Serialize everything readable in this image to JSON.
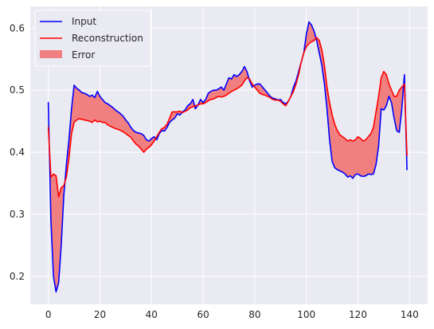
{
  "chart_data": {
    "type": "line",
    "title": "",
    "xlabel": "",
    "ylabel": "",
    "xlim": [
      -7,
      147
    ],
    "ylim": [
      0.155,
      0.635
    ],
    "x_ticks": [
      0,
      20,
      40,
      60,
      80,
      100,
      120,
      140
    ],
    "y_ticks": [
      0.2,
      0.3,
      0.4,
      0.5,
      0.6
    ],
    "grid": true,
    "legend_position": "upper-left",
    "legend": [
      "Input",
      "Reconstruction",
      "Error"
    ],
    "fill_between": {
      "name": "Error",
      "between": [
        "Input",
        "Reconstruction"
      ],
      "color": "#f08080"
    },
    "x": [
      0,
      1,
      2,
      3,
      4,
      5,
      6,
      7,
      8,
      9,
      10,
      11,
      12,
      13,
      14,
      15,
      16,
      17,
      18,
      19,
      20,
      21,
      22,
      23,
      24,
      25,
      26,
      27,
      28,
      29,
      30,
      31,
      32,
      33,
      34,
      35,
      36,
      37,
      38,
      39,
      40,
      41,
      42,
      43,
      44,
      45,
      46,
      47,
      48,
      49,
      50,
      51,
      52,
      53,
      54,
      55,
      56,
      57,
      58,
      59,
      60,
      61,
      62,
      63,
      64,
      65,
      66,
      67,
      68,
      69,
      70,
      71,
      72,
      73,
      74,
      75,
      76,
      77,
      78,
      79,
      80,
      81,
      82,
      83,
      84,
      85,
      86,
      87,
      88,
      89,
      90,
      91,
      92,
      93,
      94,
      95,
      96,
      97,
      98,
      99,
      100,
      101,
      102,
      103,
      104,
      105,
      106,
      107,
      108,
      109,
      110,
      111,
      112,
      113,
      114,
      115,
      116,
      117,
      118,
      119,
      120,
      121,
      122,
      123,
      124,
      125,
      126,
      127,
      128,
      129,
      130,
      131,
      132,
      133,
      134,
      135,
      136,
      137,
      138,
      139
    ],
    "series": [
      {
        "name": "Input",
        "color": "#0000ff",
        "values": [
          0.48,
          0.29,
          0.2,
          0.175,
          0.19,
          0.25,
          0.33,
          0.38,
          0.42,
          0.47,
          0.508,
          0.503,
          0.5,
          0.496,
          0.495,
          0.493,
          0.49,
          0.492,
          0.488,
          0.498,
          0.49,
          0.485,
          0.48,
          0.478,
          0.475,
          0.472,
          0.468,
          0.465,
          0.462,
          0.458,
          0.452,
          0.447,
          0.44,
          0.435,
          0.432,
          0.431,
          0.43,
          0.427,
          0.42,
          0.418,
          0.422,
          0.425,
          0.42,
          0.43,
          0.435,
          0.434,
          0.44,
          0.448,
          0.452,
          0.455,
          0.462,
          0.46,
          0.465,
          0.468,
          0.475,
          0.478,
          0.485,
          0.47,
          0.476,
          0.485,
          0.48,
          0.485,
          0.495,
          0.498,
          0.5,
          0.5,
          0.502,
          0.505,
          0.5,
          0.51,
          0.52,
          0.518,
          0.525,
          0.522,
          0.525,
          0.53,
          0.538,
          0.53,
          0.515,
          0.505,
          0.508,
          0.51,
          0.51,
          0.505,
          0.5,
          0.495,
          0.49,
          0.487,
          0.486,
          0.484,
          0.485,
          0.48,
          0.478,
          0.482,
          0.49,
          0.505,
          0.515,
          0.53,
          0.545,
          0.56,
          0.59,
          0.61,
          0.605,
          0.595,
          0.58,
          0.56,
          0.54,
          0.51,
          0.47,
          0.42,
          0.385,
          0.375,
          0.372,
          0.37,
          0.368,
          0.365,
          0.36,
          0.362,
          0.358,
          0.364,
          0.365,
          0.362,
          0.361,
          0.362,
          0.365,
          0.364,
          0.365,
          0.38,
          0.41,
          0.47,
          0.468,
          0.475,
          0.49,
          0.48,
          0.455,
          0.435,
          0.432,
          0.47,
          0.525,
          0.372
        ]
      },
      {
        "name": "Reconstruction",
        "color": "#ff0000",
        "values": [
          0.44,
          0.36,
          0.365,
          0.362,
          0.328,
          0.343,
          0.346,
          0.36,
          0.39,
          0.43,
          0.448,
          0.452,
          0.454,
          0.453,
          0.452,
          0.451,
          0.45,
          0.448,
          0.452,
          0.449,
          0.45,
          0.448,
          0.448,
          0.444,
          0.442,
          0.44,
          0.438,
          0.437,
          0.435,
          0.433,
          0.43,
          0.427,
          0.424,
          0.418,
          0.413,
          0.41,
          0.405,
          0.4,
          0.405,
          0.408,
          0.412,
          0.418,
          0.425,
          0.432,
          0.438,
          0.44,
          0.445,
          0.455,
          0.465,
          0.465,
          0.465,
          0.466,
          0.464,
          0.466,
          0.468,
          0.472,
          0.473,
          0.475,
          0.476,
          0.478,
          0.478,
          0.48,
          0.483,
          0.485,
          0.486,
          0.488,
          0.49,
          0.489,
          0.49,
          0.492,
          0.495,
          0.498,
          0.5,
          0.502,
          0.505,
          0.508,
          0.515,
          0.52,
          0.518,
          0.51,
          0.505,
          0.5,
          0.495,
          0.493,
          0.492,
          0.49,
          0.488,
          0.485,
          0.484,
          0.484,
          0.482,
          0.478,
          0.475,
          0.482,
          0.49,
          0.498,
          0.51,
          0.525,
          0.545,
          0.56,
          0.57,
          0.575,
          0.578,
          0.58,
          0.585,
          0.58,
          0.565,
          0.54,
          0.505,
          0.48,
          0.46,
          0.445,
          0.435,
          0.428,
          0.425,
          0.422,
          0.418,
          0.42,
          0.418,
          0.42,
          0.425,
          0.422,
          0.418,
          0.42,
          0.425,
          0.43,
          0.44,
          0.465,
          0.49,
          0.52,
          0.53,
          0.525,
          0.51,
          0.5,
          0.49,
          0.49,
          0.5,
          0.505,
          0.51,
          0.395
        ]
      }
    ]
  }
}
